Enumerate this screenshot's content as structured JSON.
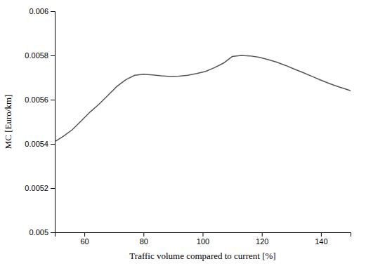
{
  "chart_data": {
    "type": "line",
    "x_label": "Traffic volume compared to current [%]",
    "y_label": "MC [Euro/km]",
    "x": [
      50,
      53,
      56,
      59,
      62,
      65,
      68,
      71,
      74,
      77,
      80,
      83,
      86,
      89,
      92,
      95,
      98,
      101,
      104,
      107,
      110,
      113,
      116,
      119,
      122,
      125,
      128,
      131,
      134,
      137,
      140,
      143,
      146,
      149,
      150
    ],
    "values": [
      0.00541,
      0.005435,
      0.005465,
      0.005505,
      0.005545,
      0.00558,
      0.00562,
      0.00566,
      0.00569,
      0.00571,
      0.005715,
      0.005712,
      0.005708,
      0.005705,
      0.005706,
      0.00571,
      0.005718,
      0.005728,
      0.005745,
      0.005765,
      0.005795,
      0.0058,
      0.005798,
      0.005792,
      0.005782,
      0.00577,
      0.005755,
      0.005738,
      0.005722,
      0.005705,
      0.005688,
      0.005672,
      0.005658,
      0.005645,
      0.00564
    ],
    "color": "#555555",
    "xlim": [
      50,
      150
    ],
    "ylim": [
      0.005,
      0.006
    ],
    "xticks": [
      60,
      80,
      100,
      120,
      140
    ],
    "yticks": [
      0.005,
      0.0052,
      0.0054,
      0.0056,
      0.0058,
      0.006
    ],
    "grid": false
  }
}
